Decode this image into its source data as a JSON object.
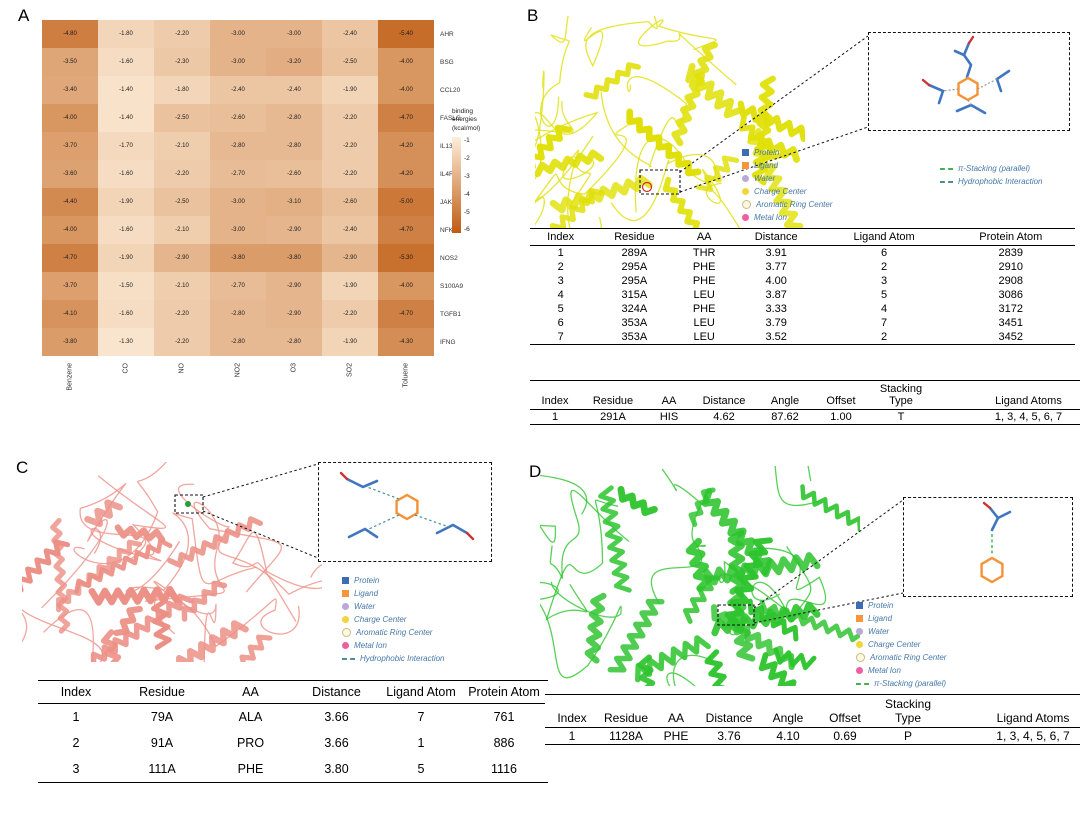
{
  "figure": {
    "background": "#ffffff"
  },
  "panels": {
    "a": {
      "label": "A"
    },
    "b": {
      "label": "B",
      "protein_color": "#e0e008",
      "legend_left": [
        {
          "label": "Protein",
          "marker": "square",
          "color": "#3b6cb4",
          "icon": "protein-marker-icon"
        },
        {
          "label": "Ligand",
          "marker": "square",
          "color": "#f6953c",
          "icon": "ligand-marker-icon"
        },
        {
          "label": "Water",
          "marker": "circle",
          "color": "#b9a8d8",
          "icon": "water-marker-icon"
        },
        {
          "label": "Charge Center",
          "marker": "circle",
          "color": "#f2d53b",
          "icon": "charge-center-marker-icon"
        },
        {
          "label": "Aromatic Ring Center",
          "marker": "circle-open",
          "color": "#fdf8e3",
          "icon": "aromatic-ring-center-marker-icon"
        },
        {
          "label": "Metal Ion",
          "marker": "circle",
          "color": "#ee5fa0",
          "icon": "metal-ion-marker-icon"
        }
      ],
      "legend_right": [
        {
          "label": "π-Stacking (parallel)",
          "marker": "dash",
          "color": "#45b04a",
          "icon": "pi-stacking-marker-icon"
        },
        {
          "label": "Hydrophobic Interaction",
          "marker": "dash",
          "color": "#4a8f8f",
          "icon": "hydrophobic-marker-icon"
        }
      ],
      "tables": {
        "hydrophobic": {
          "columns": [
            "Index",
            "Residue",
            "AA",
            "Distance",
            "Ligand Atom",
            "Protein Atom"
          ],
          "rows": [
            [
              "1",
              "289A",
              "THR",
              "3.91",
              "6",
              "2839"
            ],
            [
              "2",
              "295A",
              "PHE",
              "3.77",
              "2",
              "2910"
            ],
            [
              "3",
              "295A",
              "PHE",
              "4.00",
              "3",
              "2908"
            ],
            [
              "4",
              "315A",
              "LEU",
              "3.87",
              "5",
              "3086"
            ],
            [
              "5",
              "324A",
              "PHE",
              "3.33",
              "4",
              "3172"
            ],
            [
              "6",
              "353A",
              "LEU",
              "3.79",
              "7",
              "3451"
            ],
            [
              "7",
              "353A",
              "LEU",
              "3.52",
              "2",
              "3452"
            ]
          ]
        },
        "stacking": {
          "columns": [
            "Index",
            "Residue",
            "AA",
            "Distance",
            "Angle",
            "Offset",
            "Stacking Type",
            "Ligand Atoms"
          ],
          "rows": [
            [
              "1",
              "291A",
              "HIS",
              "4.62",
              "87.62",
              "1.00",
              "T",
              "1, 3, 4, 5, 6, 7"
            ]
          ]
        }
      }
    },
    "c": {
      "label": "C",
      "protein_color": "#ec9086",
      "legend": [
        {
          "label": "Protein",
          "marker": "square",
          "color": "#3b6cb4",
          "icon": "protein-marker-icon"
        },
        {
          "label": "Ligand",
          "marker": "square",
          "color": "#f6953c",
          "icon": "ligand-marker-icon"
        },
        {
          "label": "Water",
          "marker": "circle",
          "color": "#b9a8d8",
          "icon": "water-marker-icon"
        },
        {
          "label": "Charge Center",
          "marker": "circle",
          "color": "#f2d53b",
          "icon": "charge-center-marker-icon"
        },
        {
          "label": "Aromatic Ring Center",
          "marker": "circle-open",
          "color": "#fdf8e3",
          "icon": "aromatic-ring-center-marker-icon"
        },
        {
          "label": "Metal Ion",
          "marker": "circle",
          "color": "#ee5fa0",
          "icon": "metal-ion-marker-icon"
        },
        {
          "label": "Hydrophobic Interaction",
          "marker": "dash",
          "color": "#4a8f8f",
          "icon": "hydrophobic-marker-icon"
        }
      ],
      "table": {
        "columns": [
          "Index",
          "Residue",
          "AA",
          "Distance",
          "Ligand Atom",
          "Protein Atom"
        ],
        "rows": [
          [
            "1",
            "79A",
            "ALA",
            "3.66",
            "7",
            "761"
          ],
          [
            "2",
            "91A",
            "PRO",
            "3.66",
            "1",
            "886"
          ],
          [
            "3",
            "111A",
            "PHE",
            "3.80",
            "5",
            "1116"
          ]
        ]
      }
    },
    "d": {
      "label": "D",
      "protein_color": "#2ec42e",
      "legend": [
        {
          "label": "Protein",
          "marker": "square",
          "color": "#3b6cb4",
          "icon": "protein-marker-icon"
        },
        {
          "label": "Ligand",
          "marker": "square",
          "color": "#f6953c",
          "icon": "ligand-marker-icon"
        },
        {
          "label": "Water",
          "marker": "circle",
          "color": "#b9a8d8",
          "icon": "water-marker-icon"
        },
        {
          "label": "Charge Center",
          "marker": "circle",
          "color": "#f2d53b",
          "icon": "charge-center-marker-icon"
        },
        {
          "label": "Aromatic Ring Center",
          "marker": "circle-open",
          "color": "#fdf8e3",
          "icon": "aromatic-ring-center-marker-icon"
        },
        {
          "label": "Metal Ion",
          "marker": "circle",
          "color": "#ee5fa0",
          "icon": "metal-ion-marker-icon"
        },
        {
          "label": "π-Stacking (parallel)",
          "marker": "dash",
          "color": "#45b04a",
          "icon": "pi-stacking-marker-icon"
        }
      ],
      "table": {
        "columns": [
          "Index",
          "Residue",
          "AA",
          "Distance",
          "Angle",
          "Offset",
          "Stacking Type",
          "Ligand Atoms"
        ],
        "rows": [
          [
            "1",
            "1128A",
            "PHE",
            "3.76",
            "4.10",
            "0.69",
            "P",
            "1, 3, 4, 5, 6, 7"
          ]
        ]
      }
    }
  },
  "chart_data": {
    "type": "heatmap",
    "title": "",
    "xlabel": "",
    "ylabel": "",
    "columns": [
      "Benzene",
      "CO",
      "NO",
      "NO2",
      "O3",
      "SO2",
      "Toluene"
    ],
    "rows": [
      "AHR",
      "BSG",
      "CCL20",
      "FASLG",
      "IL13",
      "IL4R",
      "JAK1",
      "NFKB1",
      "NOS2",
      "S100A9",
      "TGFB1",
      "IFNG"
    ],
    "values": [
      [
        -4.8,
        -1.8,
        -2.2,
        -3.0,
        -3.0,
        -2.4,
        -5.4
      ],
      [
        -3.5,
        -1.6,
        -2.3,
        -3.0,
        -3.2,
        -2.5,
        -4.0
      ],
      [
        -3.4,
        -1.4,
        -1.8,
        -2.4,
        -2.4,
        -1.9,
        -4.0
      ],
      [
        -4.0,
        -1.4,
        -2.5,
        -2.6,
        -2.8,
        -2.2,
        -4.7
      ],
      [
        -3.7,
        -1.7,
        -2.1,
        -2.8,
        -2.8,
        -2.2,
        -4.2
      ],
      [
        -3.6,
        -1.6,
        -2.2,
        -2.7,
        -2.6,
        -2.2,
        -4.2
      ],
      [
        -4.4,
        -1.9,
        -2.5,
        -3.0,
        -3.1,
        -2.6,
        -5.0
      ],
      [
        -4.0,
        -1.6,
        -2.1,
        -3.0,
        -2.9,
        -2.4,
        -4.7
      ],
      [
        -4.7,
        -1.9,
        -2.9,
        -3.8,
        -3.8,
        -2.9,
        -5.3
      ],
      [
        -3.7,
        -1.5,
        -2.1,
        -2.7,
        -2.9,
        -1.9,
        -4.0
      ],
      [
        -4.1,
        -1.6,
        -2.2,
        -2.8,
        -2.9,
        -2.2,
        -4.7
      ],
      [
        -3.8,
        -1.3,
        -2.2,
        -2.8,
        -2.8,
        -1.9,
        -4.3
      ]
    ],
    "legend": {
      "title": "binding energies (kcal/mol)",
      "ticks": [
        "-1",
        "-2",
        "-3",
        "-4",
        "-5",
        "-6"
      ],
      "value_max": -1,
      "value_min": -6,
      "light_color": "#fdeeda",
      "dark_color": "#bf5b11"
    }
  }
}
